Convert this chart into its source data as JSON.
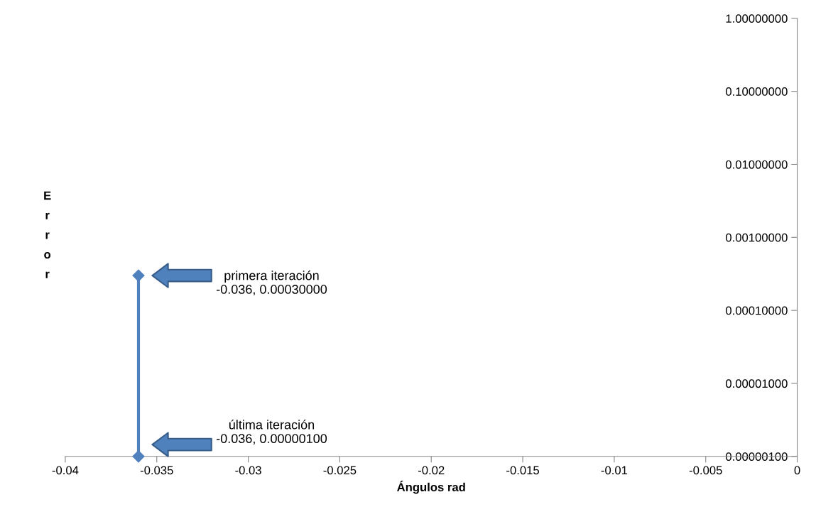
{
  "chart_data": {
    "type": "line",
    "xlabel": "Ángulos rad",
    "ylabel": "Error",
    "x": [
      -0.036,
      -0.036
    ],
    "series": [
      {
        "color": "#4f81bd",
        "values": [
          0.0003,
          1e-06
        ]
      }
    ],
    "marker": "diamond",
    "line_style": "solid",
    "log": "y",
    "grid": false,
    "xlim": [
      -0.04,
      0
    ],
    "xticks": [
      -0.04,
      -0.035,
      -0.03,
      -0.025,
      -0.02,
      -0.015,
      -0.01,
      -0.005,
      0
    ],
    "ylim": [
      1e-06,
      1
    ],
    "yticks": [
      {
        "value": 1e-06,
        "label": "0.00000100"
      },
      {
        "value": 1e-05,
        "label": "0.00001000"
      },
      {
        "value": 0.0001,
        "label": "0.00010000"
      },
      {
        "value": 0.001,
        "label": "0.00100000"
      },
      {
        "value": 0.01,
        "label": "0.01000000"
      },
      {
        "value": 0.1,
        "label": "0.10000000"
      },
      {
        "value": 1,
        "label": "1.00000000"
      }
    ],
    "annotations": [
      "primera iteración\n-0.036, 0.00030000",
      "última iteración\n-0.036, 0.00000100"
    ]
  }
}
